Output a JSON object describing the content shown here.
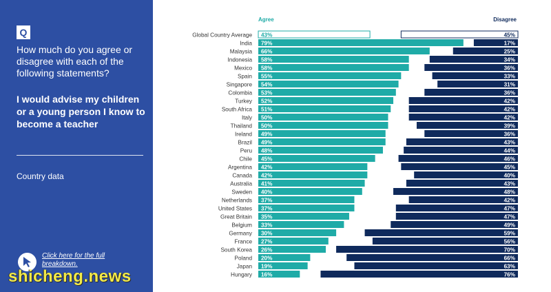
{
  "sidebar": {
    "badge": "Q",
    "question": "How much do you agree or disagree with each of the following statements?",
    "statement": "I would advise my children or a young person I know to become a teacher",
    "subhead": "Country data",
    "link_text": "Click here for the full breakdown.",
    "watermark": "shicheng.news"
  },
  "colors": {
    "agree": "#1faba7",
    "disagree": "#0f2a5c",
    "panel": "#2d4fa3"
  },
  "chart_data": {
    "type": "bar",
    "orientation": "horizontal-diverging",
    "series": [
      {
        "name": "Agree",
        "values": [
          43,
          79,
          66,
          58,
          58,
          55,
          54,
          53,
          52,
          51,
          50,
          50,
          49,
          49,
          48,
          45,
          42,
          42,
          41,
          40,
          37,
          37,
          35,
          33,
          30,
          27,
          26,
          20,
          19,
          16
        ]
      },
      {
        "name": "Disagree",
        "values": [
          45,
          17,
          25,
          34,
          36,
          33,
          31,
          36,
          42,
          42,
          42,
          39,
          36,
          43,
          44,
          46,
          45,
          40,
          43,
          48,
          42,
          47,
          47,
          49,
          59,
          56,
          70,
          66,
          63,
          76
        ]
      }
    ],
    "categories": [
      "Global Country Average",
      "India",
      "Malaysia",
      "Indonesia",
      "Mexico",
      "Spain",
      "Singapore",
      "Colombia",
      "Turkey",
      "South Africa",
      "Italy",
      "Thailand",
      "Ireland",
      "Brazil",
      "Peru",
      "Chile",
      "Argentina",
      "Canada",
      "Australia",
      "Sweden",
      "Netherlands",
      "United States",
      "Great Britain",
      "Belgium",
      "Germany",
      "France",
      "South Korea",
      "Poland",
      "Japan",
      "Hungary"
    ],
    "value_suffix": "%",
    "xlim": [
      0,
      100
    ],
    "outlined_categories": [
      "Global Country Average"
    ]
  }
}
